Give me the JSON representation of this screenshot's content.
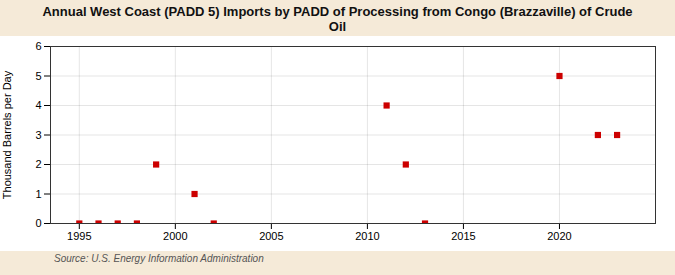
{
  "chart_data": {
    "type": "scatter",
    "title": "Annual West Coast (PADD 5) Imports by PADD of Processing from Congo (Brazzaville) of Crude\nOil",
    "ylabel": "Thousand Barrels per Day",
    "source": "Source: U.S. Energy Information Administration",
    "x": [
      1995,
      1996,
      1997,
      1998,
      1999,
      2001,
      2002,
      2011,
      2012,
      2013,
      2020,
      2022,
      2023
    ],
    "values": [
      0,
      0,
      0,
      0,
      2,
      1,
      0,
      4,
      2,
      0,
      5,
      3,
      3
    ],
    "color": "#cc0000",
    "marker": "square",
    "xlim": [
      1993.5,
      2025
    ],
    "ylim": [
      0,
      6
    ],
    "xticks": [
      1995,
      2000,
      2005,
      2010,
      2015,
      2020
    ],
    "yticks": [
      0,
      1,
      2,
      3,
      4,
      5,
      6
    ],
    "grid": true
  }
}
